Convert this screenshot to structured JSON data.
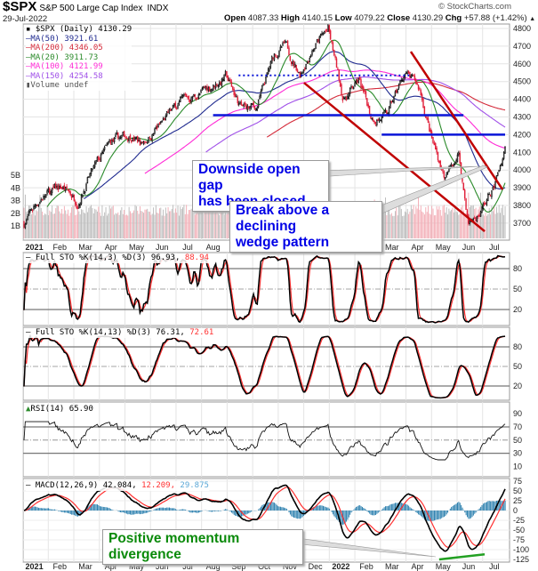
{
  "header": {
    "symbol": "$SPX",
    "name": "S&P 500 Large Cap Index",
    "exchange": "INDX",
    "date": "29-Jul-2022",
    "brand": "© StockCharts.com",
    "open_label": "Open",
    "open": "4087.33",
    "high_label": "High",
    "high": "4140.15",
    "low_label": "Low",
    "low": "4079.22",
    "close_label": "Close",
    "close": "4130.29",
    "chg_label": "Chg",
    "chg": "+57.88 (+1.42%)",
    "chg_arrow": "▲"
  },
  "colors": {
    "up_candle": "#000000",
    "down_candle": "#e0203a",
    "ma50": "#1f2a8f",
    "ma200": "#d42a3a",
    "ma20": "#2a8a2a",
    "ma100": "#ff2bd6",
    "ma150": "#a050e8",
    "trend_blue": "#0a14d8",
    "trend_red": "#c00000",
    "divergence_green": "#22a022",
    "macd_hist": "#2a7fae",
    "signal": "#ff3030"
  },
  "legend": {
    "price": "$SPX (Daily) 4130.29",
    "ma50": "MA(50) 3921.61",
    "ma200": "MA(200) 4346.05",
    "ma20": "MA(20) 3911.73",
    "ma100": "MA(100) 4121.99",
    "ma150": "MA(150) 4254.58",
    "volume": "Volume undef",
    "sto1": "Full STO %K(14,3) %D(3) 96.93,",
    "sto1_d": "88.94",
    "sto2": "Full STO %K(14,13) %D(3) 76.31,",
    "sto2_d": "72.61",
    "rsi": "RSI(14) 65.90",
    "macd": "MACD(12,26,9) 42.084,",
    "macd_signal": "12.209,",
    "macd_hist": "29.875"
  },
  "annotations": {
    "gap": [
      "Downside open gap",
      "has been closed"
    ],
    "wedge": [
      "Break above a declining",
      "wedge pattern"
    ],
    "divergence": "Positive momentum divergence"
  },
  "axes": {
    "months": [
      "2021",
      "Feb",
      "Mar",
      "Apr",
      "May",
      "Jun",
      "Jul",
      "Aug",
      "Sep",
      "Oct",
      "Nov",
      "Dec",
      "2022",
      "Feb",
      "Mar",
      "Apr",
      "May",
      "Jun",
      "Jul"
    ],
    "price_ticks": [
      "4800",
      "4700",
      "4600",
      "4500",
      "4400",
      "4300",
      "4200",
      "4100",
      "4000",
      "3900",
      "3800",
      "3700"
    ],
    "volume_ticks": [
      "5B",
      "4B",
      "3B",
      "2B",
      "1B"
    ],
    "sto_ticks": [
      "80",
      "50",
      "20"
    ],
    "rsi_ticks": [
      "90",
      "70",
      "50",
      "30",
      "10"
    ],
    "macd_ticks": [
      "75",
      "50",
      "25",
      "0",
      "-25",
      "-50",
      "-75",
      "-100",
      "-125"
    ]
  },
  "chart_data": [
    {
      "type": "candlestick",
      "title": "$SPX S&P 500 Large Cap Index (Daily)",
      "x_unit": "months since 1-Jan-2021",
      "ylim": [
        3620,
        4830
      ],
      "price_path": [
        [
          0.1,
          3700
        ],
        [
          0.8,
          3850
        ],
        [
          1.6,
          3900
        ],
        [
          2.2,
          3830
        ],
        [
          2.6,
          3950
        ],
        [
          3.5,
          4150
        ],
        [
          4.3,
          4200
        ],
        [
          4.7,
          4150
        ],
        [
          5.4,
          4250
        ],
        [
          6.2,
          4380
        ],
        [
          7.2,
          4450
        ],
        [
          8.0,
          4530
        ],
        [
          8.6,
          4350
        ],
        [
          9.2,
          4350
        ],
        [
          9.9,
          4650
        ],
        [
          10.3,
          4700
        ],
        [
          10.9,
          4550
        ],
        [
          11.4,
          4700
        ],
        [
          12.0,
          4790
        ],
        [
          12.6,
          4400
        ],
        [
          13.2,
          4500
        ],
        [
          13.7,
          4300
        ],
        [
          14.3,
          4300
        ],
        [
          15.0,
          4550
        ],
        [
          15.6,
          4450
        ],
        [
          16.1,
          4150
        ],
        [
          16.6,
          3950
        ],
        [
          17.1,
          4100
        ],
        [
          17.5,
          3700
        ],
        [
          17.9,
          3750
        ],
        [
          18.5,
          3900
        ],
        [
          18.93,
          4130
        ]
      ],
      "moving_averages": [
        20,
        50,
        100,
        150,
        200
      ],
      "trendlines": [
        {
          "name": "resistance-dotted",
          "style": "dotted",
          "color": "blue",
          "points": [
            [
              8.5,
              4535
            ],
            [
              15.2,
              4535
            ]
          ]
        },
        {
          "name": "support-4300",
          "style": "solid",
          "color": "blue",
          "points": [
            [
              7.5,
              4310
            ],
            [
              17.3,
              4310
            ]
          ]
        },
        {
          "name": "gap-4200",
          "style": "solid",
          "color": "blue",
          "points": [
            [
              14.1,
              4200
            ],
            [
              18.93,
              4200
            ]
          ]
        },
        {
          "name": "wedge-lower",
          "style": "solid",
          "color": "red",
          "points": [
            [
              11.06,
              4493
            ],
            [
              18.13,
              3654
            ]
          ]
        },
        {
          "name": "wedge-upper",
          "style": "solid",
          "color": "red",
          "points": [
            [
              15.24,
              4669
            ],
            [
              18.83,
              3890
            ]
          ]
        }
      ]
    },
    {
      "type": "line",
      "title": "Full STO %K(14,3) %D(3)",
      "ylim": [
        0,
        100
      ],
      "levels": [
        80,
        50,
        20
      ],
      "last": {
        "k": 96.93,
        "d": 88.94
      }
    },
    {
      "type": "line",
      "title": "Full STO %K(14,13) %D(3)",
      "ylim": [
        0,
        100
      ],
      "levels": [
        80,
        50,
        20
      ],
      "last": {
        "k": 76.31,
        "d": 72.61
      }
    },
    {
      "type": "line",
      "title": "RSI(14)",
      "ylim": [
        0,
        100
      ],
      "levels": [
        70,
        50,
        30
      ],
      "last": 65.9
    },
    {
      "type": "line+bar",
      "title": "MACD(12,26,9)",
      "ylim": [
        -135,
        80
      ],
      "last": {
        "macd": 42.084,
        "signal": 12.209,
        "histogram": 29.875
      },
      "divergence_line": [
        [
          16.35,
          -125
        ],
        [
          18.13,
          -112
        ]
      ]
    }
  ]
}
